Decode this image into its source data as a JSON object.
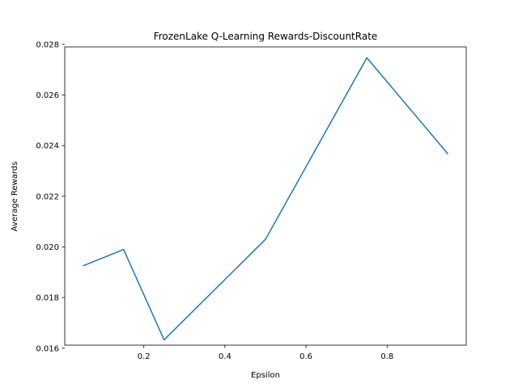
{
  "chart_data": {
    "type": "line",
    "title": "FrozenLake Q-Learning Rewards-DiscountRate",
    "xlabel": "Epsilon",
    "ylabel": "Average Rewards",
    "xlim": [
      0.005,
      0.995
    ],
    "ylim": [
      0.01612,
      0.0279
    ],
    "x_ticks": [
      {
        "value": 0.2,
        "label": "0.2"
      },
      {
        "value": 0.4,
        "label": "0.4"
      },
      {
        "value": 0.6,
        "label": "0.6"
      },
      {
        "value": 0.8,
        "label": "0.8"
      }
    ],
    "y_ticks": [
      {
        "value": 0.016,
        "label": "0.016"
      },
      {
        "value": 0.018,
        "label": "0.018"
      },
      {
        "value": 0.02,
        "label": "0.020"
      },
      {
        "value": 0.022,
        "label": "0.022"
      },
      {
        "value": 0.024,
        "label": "0.024"
      },
      {
        "value": 0.026,
        "label": "0.026"
      },
      {
        "value": 0.028,
        "label": "0.028"
      }
    ],
    "grid": false,
    "series": [
      {
        "color": "#1f77b4",
        "x": [
          0.05,
          0.15,
          0.25,
          0.5,
          0.75,
          0.95
        ],
        "y": [
          0.01925,
          0.0199,
          0.01633,
          0.0203,
          0.02747,
          0.02367
        ]
      }
    ]
  }
}
